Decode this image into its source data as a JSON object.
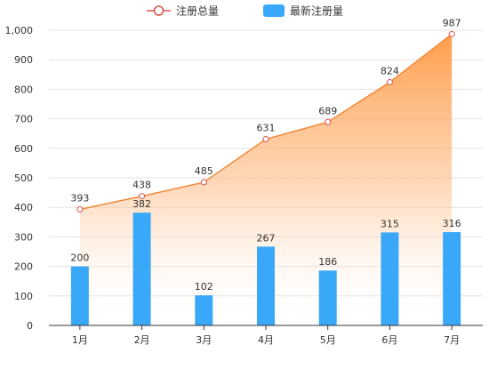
{
  "chart_data": {
    "type": "bar",
    "categories": [
      "1月",
      "2月",
      "3月",
      "4月",
      "5月",
      "6月",
      "7月"
    ],
    "series": [
      {
        "name": "注册总量",
        "type": "line",
        "color": "#f5a25d",
        "values": [
          393,
          438,
          485,
          631,
          689,
          824,
          987
        ]
      },
      {
        "name": "最新注册量",
        "type": "bar",
        "color": "#3aa8f8",
        "values": [
          200,
          382,
          102,
          267,
          186,
          315,
          316
        ]
      }
    ],
    "yticks": [
      "0",
      "100",
      "200",
      "300",
      "400",
      "500",
      "600",
      "700",
      "800",
      "900",
      "1,000"
    ],
    "ylim": [
      0,
      1000
    ],
    "grid": true,
    "legend": "top-center"
  }
}
